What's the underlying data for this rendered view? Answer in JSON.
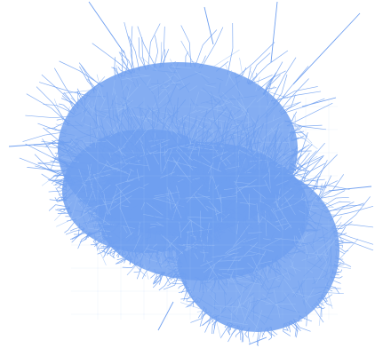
{
  "graph": {
    "color": "#6f9ff0"
  }
}
